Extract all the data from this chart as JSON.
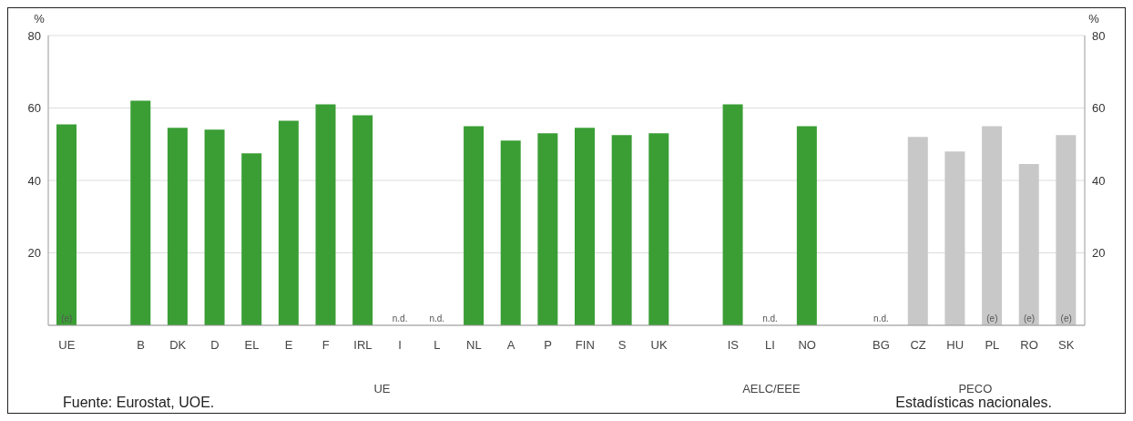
{
  "chart_data": {
    "type": "bar",
    "ylabel": "%",
    "y2label": "%",
    "categories": [
      "UE",
      null,
      "B",
      "DK",
      "D",
      "EL",
      "E",
      "F",
      "IRL",
      "I",
      "L",
      "NL",
      "A",
      "P",
      "FIN",
      "S",
      "UK",
      null,
      "IS",
      "LI",
      "NO",
      null,
      "BG",
      "CZ",
      "HU",
      "PL",
      "RO",
      "SK"
    ],
    "values": [
      55.5,
      null,
      62,
      54.5,
      54,
      47.5,
      56.5,
      61,
      58,
      null,
      null,
      55,
      51,
      53,
      54.5,
      52.5,
      53,
      null,
      61,
      null,
      55,
      null,
      null,
      52,
      48,
      55,
      44.5,
      52.5
    ],
    "colors": [
      "#3a9e35",
      null,
      "#3a9e35",
      "#3a9e35",
      "#3a9e35",
      "#3a9e35",
      "#3a9e35",
      "#3a9e35",
      "#3a9e35",
      "#3a9e35",
      "#3a9e35",
      "#3a9e35",
      "#3a9e35",
      "#3a9e35",
      "#3a9e35",
      "#3a9e35",
      "#3a9e35",
      null,
      "#3a9e35",
      "#3a9e35",
      "#3a9e35",
      null,
      "#c8c8c8",
      "#c8c8c8",
      "#c8c8c8",
      "#c8c8c8",
      "#c8c8c8",
      "#c8c8c8"
    ],
    "value_labels": [
      "(e)",
      null,
      null,
      null,
      null,
      null,
      null,
      null,
      null,
      "n.d.",
      "n.d.",
      null,
      null,
      null,
      null,
      null,
      null,
      null,
      null,
      "n.d.",
      null,
      null,
      "n.d.",
      null,
      null,
      "(e)",
      "(e)",
      "(e)"
    ],
    "ylim": [
      0,
      80
    ],
    "yticks": [
      20,
      40,
      60,
      80
    ],
    "y2lim": [
      0,
      80
    ],
    "y2ticks": [
      20,
      40,
      60,
      80
    ],
    "grid": "y",
    "annotations": [
      "UE",
      "AELC/EEE",
      "PECO",
      "Fuente: Eurostat, UOE.",
      "Estadísticas nacionales."
    ]
  }
}
